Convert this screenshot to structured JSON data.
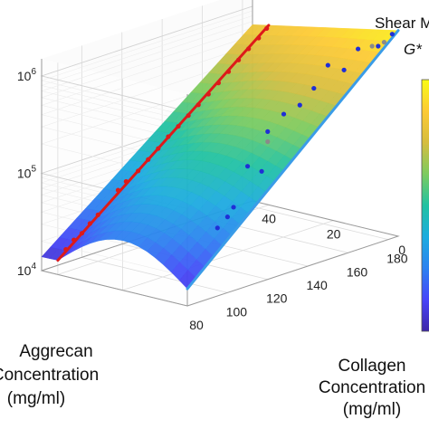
{
  "chart_data": {
    "type": "scatter",
    "view": "3d-surface",
    "scale": {
      "z": "log"
    },
    "grid": true,
    "x_axis": {
      "label_lines": [
        "Collagen",
        "Concentration",
        "(mg/ml)"
      ],
      "ticks": [
        "80",
        "100",
        "120",
        "140",
        "160",
        "180"
      ],
      "range": [
        80,
        185
      ]
    },
    "y_axis": {
      "label_lines": [
        "Aggrecan",
        "Concentration",
        "(mg/ml)"
      ],
      "ticks": [
        "0",
        "20",
        "40"
      ],
      "range": [
        0,
        45
      ]
    },
    "z_axis": {
      "ticks": [
        {
          "base": "10",
          "exp": "4",
          "value": 10000
        },
        {
          "base": "10",
          "exp": "5",
          "value": 100000
        },
        {
          "base": "10",
          "exp": "6",
          "value": 1000000
        }
      ],
      "range": [
        10000,
        1500000
      ]
    },
    "colorbar": {
      "title_lines": [
        "Shear M",
        "G*"
      ],
      "colormap": [
        "#3e26a8",
        "#4745f9",
        "#2c82f0",
        "#1cacdf",
        "#21c2a2",
        "#7ccb5f",
        "#d6bd3f",
        "#fdca35",
        "#f9fb15"
      ]
    },
    "series": [
      {
        "color": "#1f2fd6",
        "line_color": "#3a9ce8",
        "line": [
          [
            80,
            0,
            15000
          ],
          [
            185,
            0,
            1300000
          ]
        ],
        "points": [
          [
            95,
            0,
            50000
          ],
          [
            100,
            0,
            60000
          ],
          [
            103,
            0,
            72000
          ],
          [
            110,
            0,
            170000
          ],
          [
            117,
            0,
            135000
          ],
          [
            120,
            0,
            330000
          ],
          [
            128,
            0,
            440000
          ],
          [
            136,
            0,
            480000
          ],
          [
            143,
            0,
            640000
          ],
          [
            150,
            0,
            990000
          ],
          [
            158,
            0,
            780000
          ],
          [
            165,
            0,
            1150000
          ],
          [
            175,
            0,
            1050000
          ],
          [
            182,
            0,
            1250000
          ]
        ]
      },
      {
        "color": "#dd1a1a",
        "line_color": "#dd1a1a",
        "line": [
          [
            80,
            40,
            14000
          ],
          [
            185,
            40,
            700000
          ]
        ],
        "points": [
          [
            84,
            40,
            17000
          ],
          [
            88,
            40,
            20000
          ],
          [
            92,
            40,
            22000
          ],
          [
            96,
            40,
            26000
          ],
          [
            100,
            40,
            30000
          ],
          [
            110,
            40,
            46000
          ],
          [
            114,
            40,
            53000
          ],
          [
            120,
            40,
            62000
          ],
          [
            125,
            40,
            75000
          ],
          [
            130,
            40,
            90000
          ],
          [
            135,
            40,
            110000
          ],
          [
            140,
            40,
            130000
          ],
          [
            145,
            40,
            155000
          ],
          [
            150,
            40,
            185000
          ],
          [
            155,
            40,
            220000
          ],
          [
            160,
            40,
            265000
          ],
          [
            165,
            40,
            320000
          ],
          [
            170,
            40,
            390000
          ],
          [
            175,
            40,
            470000
          ],
          [
            180,
            40,
            560000
          ],
          [
            184,
            40,
            660000
          ]
        ]
      },
      {
        "color": "#8a8a8a",
        "line_color": "#8a8a8a",
        "line": [],
        "points": [
          [
            172,
            0,
            1100000
          ],
          [
            178,
            0,
            1100000
          ],
          [
            120,
            0,
            260000
          ]
        ]
      }
    ]
  }
}
